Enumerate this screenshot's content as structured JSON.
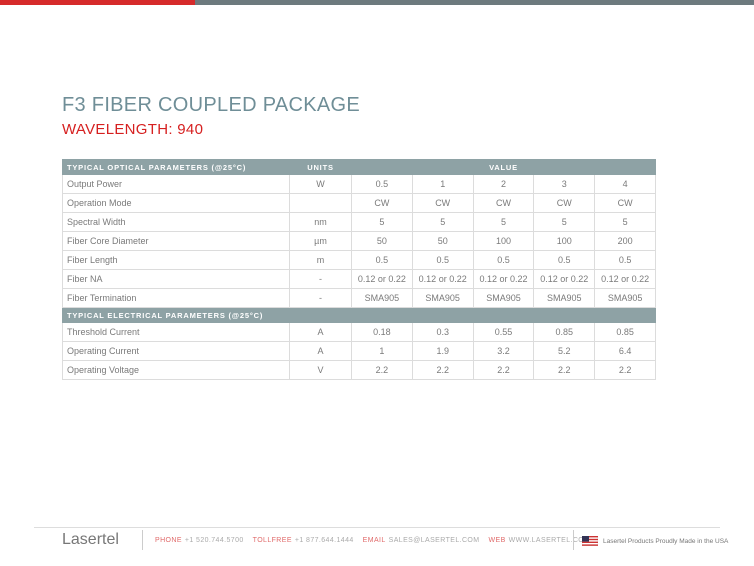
{
  "header": {
    "title": "F3 FIBER COUPLED PACKAGE",
    "subtitle": "WAVELENGTH: 940"
  },
  "table": {
    "optical": {
      "title": "TYPICAL OPTICAL PARAMETERS (@25°C)",
      "units_header": "UNITS",
      "value_header": "VALUE",
      "rows": [
        [
          "Output Power",
          "W",
          "0.5",
          "1",
          "2",
          "3",
          "4"
        ],
        [
          "Operation Mode",
          null,
          "CW",
          "CW",
          "CW",
          "CW",
          "CW"
        ],
        [
          "Spectral Width",
          "nm",
          "5",
          "5",
          "5",
          "5",
          "5"
        ],
        [
          "Fiber Core Diameter",
          "µm",
          "50",
          "50",
          "100",
          "100",
          "200"
        ],
        [
          "Fiber Length",
          "m",
          "0.5",
          "0.5",
          "0.5",
          "0.5",
          "0.5"
        ],
        [
          "Fiber NA",
          "-",
          "0.12 or 0.22",
          "0.12 or 0.22",
          "0.12 or 0.22",
          "0.12 or 0.22",
          "0.12 or 0.22"
        ],
        [
          "Fiber Termination",
          "-",
          "SMA905",
          "SMA905",
          "SMA905",
          "SMA905",
          "SMA905"
        ]
      ]
    },
    "electrical": {
      "title": "TYPICAL ELECTRICAL PARAMETERS (@25°C)",
      "rows": [
        [
          "Threshold Current",
          "A",
          "0.18",
          "0.3",
          "0.55",
          "0.85",
          "0.85"
        ],
        [
          "Operating Current",
          "A",
          "1",
          "1.9",
          "3.2",
          "5.2",
          "6.4"
        ],
        [
          "Operating Voltage",
          "V",
          "2.2",
          "2.2",
          "2.2",
          "2.2",
          "2.2"
        ]
      ]
    }
  },
  "footer": {
    "brand": "Lasertel",
    "contacts": [
      {
        "label": "PHONE",
        "value": "+1 520.744.5700"
      },
      {
        "label": "TOLLFREE",
        "value": "+1 877.644.1444"
      },
      {
        "label": "EMAIL",
        "value": "SALES@LASERTEL.COM"
      },
      {
        "label": "WEB",
        "value": "WWW.LASERTEL.COM"
      }
    ],
    "tagline": "Lasertel Products Proudly Made in the USA"
  }
}
